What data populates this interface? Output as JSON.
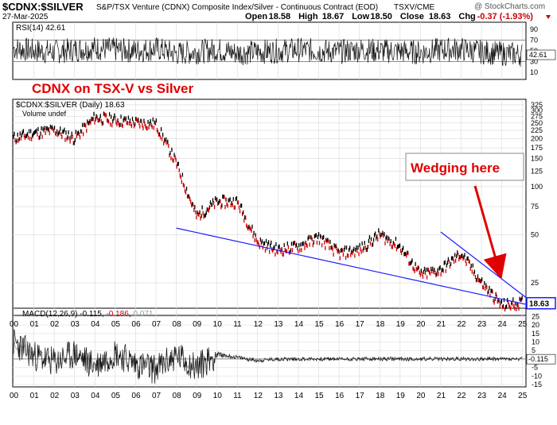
{
  "header": {
    "symbol": "$CDNX:$SILVER",
    "description": "S&P/TSX Venture (CDNX) Composite Index/Silver - Continuous Contract (EOD)",
    "exchange": "TSXV/CME",
    "date": "27-Mar-2025",
    "watermark": "@ StockCharts.com",
    "ohlc": [
      {
        "label": "Open",
        "value": "18.58"
      },
      {
        "label": "High",
        "value": "18.67"
      },
      {
        "label": "Low",
        "value": "18.50"
      },
      {
        "label": "Close",
        "value": "18.63"
      },
      {
        "label": "Chg",
        "value": "-0.37 (-1.93%)"
      }
    ]
  },
  "annotations": {
    "title": "CDNX on TSX-V vs Silver",
    "callout": "Wedging here"
  },
  "colors": {
    "background": "#ffffff",
    "grid": "#d8d8d8",
    "price_up": "#000000",
    "price_down": "#cc0000",
    "trendline": "#1a1aff",
    "annotation": "#e00000",
    "last_value_box": "#1a1aff",
    "macd_signal": "#cc0000",
    "macd_hist": "#9a9a9a"
  },
  "chart_data": [
    {
      "type": "line",
      "panel": "rsi",
      "label": "RSI(14)",
      "last_value": "42.61",
      "ylim": [
        0,
        100
      ],
      "yticks": [
        "90",
        "70",
        "50",
        "30",
        "10"
      ],
      "reference_lines": [
        70,
        30
      ],
      "x": [
        "00",
        "01",
        "02",
        "03",
        "04",
        "05",
        "06",
        "07",
        "08",
        "09",
        "10",
        "11",
        "12",
        "13",
        "14",
        "15",
        "16",
        "17",
        "18",
        "19",
        "20",
        "21",
        "22",
        "23",
        "24",
        "25"
      ],
      "values": [
        55,
        50,
        48,
        52,
        55,
        52,
        50,
        54,
        45,
        48,
        52,
        46,
        48,
        50,
        52,
        50,
        48,
        52,
        50,
        49,
        47,
        52,
        53,
        48,
        45,
        43
      ]
    },
    {
      "type": "line",
      "panel": "price",
      "label": "$CDNX:$SILVER (Daily)",
      "last_value": "18.63",
      "volume_label": "Volume undef",
      "scale": "log",
      "ylim": [
        16,
        340
      ],
      "yticks": [
        "325",
        "300",
        "275",
        "250",
        "225",
        "200",
        "175",
        "150",
        "125",
        "100",
        "75",
        "50",
        "25"
      ],
      "x": [
        "00",
        "01",
        "02",
        "03",
        "04",
        "05",
        "06",
        "07",
        "08",
        "09",
        "10",
        "11",
        "12",
        "13",
        "14",
        "15",
        "16",
        "17",
        "18",
        "19",
        "20",
        "21",
        "22",
        "23",
        "24",
        "25"
      ],
      "values": [
        200,
        215,
        225,
        200,
        270,
        260,
        250,
        245,
        140,
        65,
        80,
        80,
        45,
        40,
        42,
        48,
        38,
        40,
        50,
        42,
        28,
        30,
        38,
        25,
        18,
        18.63
      ],
      "trendlines": [
        {
          "from": [
            "08",
            55
          ],
          "to": [
            "25",
            18
          ]
        },
        {
          "from": [
            "21",
            52
          ],
          "to": [
            "25",
            19
          ]
        }
      ]
    },
    {
      "type": "line",
      "panel": "macd",
      "label": "MACD(12,26,9)",
      "macd_value": "-0.115",
      "signal_value": "-0.186",
      "hist_value": "0.071",
      "last_value": "-0.115",
      "ylim": [
        -15,
        28
      ],
      "yticks": [
        "25",
        "20",
        "15",
        "10",
        "5",
        "0",
        "-5",
        "-10",
        "-15"
      ],
      "x": [
        "00",
        "01",
        "02",
        "03",
        "04",
        "05",
        "06",
        "07",
        "08",
        "09",
        "10",
        "11",
        "12",
        "13",
        "14",
        "15",
        "16",
        "17",
        "18",
        "19",
        "20",
        "21",
        "22",
        "23",
        "24",
        "25"
      ],
      "values": [
        10,
        2,
        -2,
        3,
        -4,
        4,
        -3,
        -6,
        2,
        -5,
        3,
        1,
        -1,
        0,
        0,
        0,
        0,
        0,
        0,
        0,
        0,
        0,
        0,
        0,
        0,
        -0.115
      ]
    }
  ],
  "xaxis": {
    "labels": [
      "00",
      "01",
      "02",
      "03",
      "04",
      "05",
      "06",
      "07",
      "08",
      "09",
      "10",
      "11",
      "12",
      "13",
      "14",
      "15",
      "16",
      "17",
      "18",
      "19",
      "20",
      "21",
      "22",
      "23",
      "24",
      "25"
    ]
  }
}
